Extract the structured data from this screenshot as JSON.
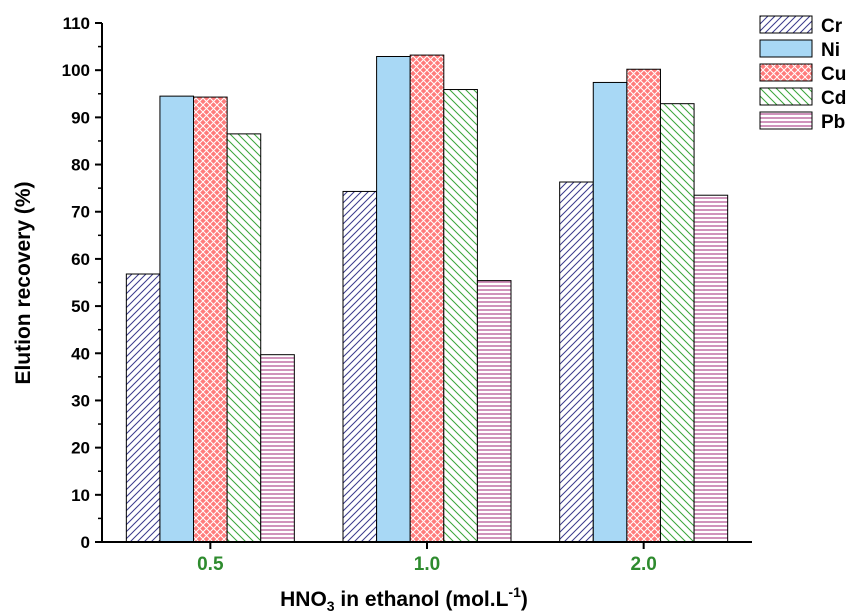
{
  "chart_data": {
    "type": "bar",
    "categories": [
      "0.5",
      "1.0",
      "2.0"
    ],
    "category_label_color": "#2e8b2e",
    "series": [
      {
        "name": "Cr",
        "values": [
          56.8,
          74.3,
          76.3
        ],
        "fill": "#ffffff",
        "hatch": "diag-left",
        "hatch_color": "#3a3a8c"
      },
      {
        "name": "Ni",
        "values": [
          94.5,
          102.9,
          97.4
        ],
        "fill": "#a8d8f5",
        "hatch": "none",
        "hatch_color": "#a8d8f5"
      },
      {
        "name": "Cu",
        "values": [
          94.3,
          103.2,
          100.2
        ],
        "fill": "#ff7b7b",
        "hatch": "crosshatch",
        "hatch_color": "#ffffff"
      },
      {
        "name": "Cd",
        "values": [
          86.5,
          95.9,
          92.9
        ],
        "fill": "#ffffff",
        "hatch": "diag-right",
        "hatch_color": "#3aa53a"
      },
      {
        "name": "Pb",
        "values": [
          39.7,
          55.4,
          73.5
        ],
        "fill": "#ffffff",
        "hatch": "horizontal",
        "hatch_color": "#a0287a"
      }
    ],
    "y_ticks": [
      "0",
      "10",
      "20",
      "30",
      "40",
      "50",
      "60",
      "70",
      "80",
      "90",
      "100",
      "110"
    ],
    "ylim": [
      0,
      110
    ],
    "ylabel": "Elution recovery (%)",
    "xlabel": {
      "main": "HNO",
      "sub": "3",
      "rest": " in ethanol (mol.L",
      "sup": "-1",
      "end": ")"
    },
    "grid": false,
    "legend_position": "right"
  }
}
